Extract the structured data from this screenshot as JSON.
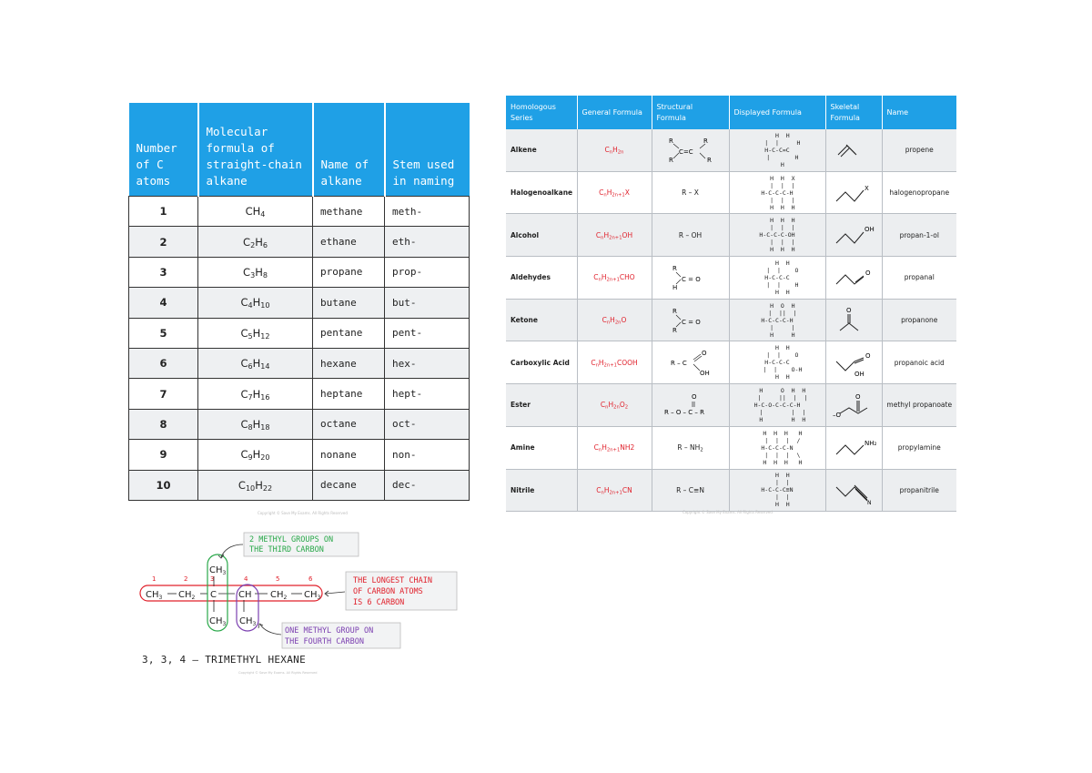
{
  "left_table": {
    "headers": {
      "number": "Number of C atoms",
      "formula": "Molecular formula of straight-chain alkane",
      "name": "Name of alkane",
      "stem": "Stem used in naming"
    },
    "rows": [
      {
        "n": "1",
        "formula": "CH4",
        "name": "methane",
        "stem": "meth-"
      },
      {
        "n": "2",
        "formula": "C2H6",
        "name": "ethane",
        "stem": "eth-"
      },
      {
        "n": "3",
        "formula": "C3H8",
        "name": "propane",
        "stem": "prop-"
      },
      {
        "n": "4",
        "formula": "C4H10",
        "name": "butane",
        "stem": "but-"
      },
      {
        "n": "5",
        "formula": "C5H12",
        "name": "pentane",
        "stem": "pent-"
      },
      {
        "n": "6",
        "formula": "C6H14",
        "name": "hexane",
        "stem": "hex-"
      },
      {
        "n": "7",
        "formula": "C7H16",
        "name": "heptane",
        "stem": "hept-"
      },
      {
        "n": "8",
        "formula": "C8H18",
        "name": "octane",
        "stem": "oct-"
      },
      {
        "n": "9",
        "formula": "C9H20",
        "name": "nonane",
        "stem": "non-"
      },
      {
        "n": "10",
        "formula": "C10H22",
        "name": "decane",
        "stem": "dec-"
      }
    ],
    "copyright": "Copyright © Save My Exams. All Rights Reserved"
  },
  "right_table": {
    "headers": {
      "series": "Homologous Series",
      "general": "General Formula",
      "structural": "Structural Formula",
      "displayed": "Displayed Formula",
      "skeletal": "Skeletal Formula",
      "name": "Name"
    },
    "rows": [
      {
        "series": "Alkene",
        "general": "CnH2n",
        "structural": "R2C=CR2",
        "displayed": "   H  H\n   |  |     H\nH-C-C=C\n   |       H\n   H",
        "name": "propene"
      },
      {
        "series": "Halogenoalkane",
        "general": "CnH2n+1X",
        "structural": "R – X",
        "displayed": "   H  H  X\n   |  |  |\nH-C-C-C-H\n   |  |  |\n   H  H  H",
        "name": "halogenopropane"
      },
      {
        "series": "Alcohol",
        "general": "CnH2n+1OH",
        "structural": "R – OH",
        "displayed": "   H  H  H\n   |  |  |\nH-C-C-C-OH\n   |  |  |\n   H  H  H",
        "name": "propan-1-ol"
      },
      {
        "series": "Aldehydes",
        "general": "CnH2n+1CHO",
        "structural": "RHC=O",
        "displayed": "   H  H\n   |  |    O\nH-C-C-C\n   |  |    H\n   H  H",
        "name": "propanal"
      },
      {
        "series": "Ketone",
        "general": "CnH2nO",
        "structural": "R2C=O",
        "displayed": "   H  O  H\n   |  ||  |\nH-C-C-C-H\n   |     |\n   H     H",
        "name": "propanone"
      },
      {
        "series": "Carboxylic Acid",
        "general": "CnH2n+1COOH",
        "structural": "RCOOH",
        "displayed": "   H  H\n   |  |    O\nH-C-C-C\n   |  |    O-H\n   H  H",
        "name": "propanoic acid"
      },
      {
        "series": "Ester",
        "general": "CnH2nO2",
        "structural": "R – O – C – R",
        "displayed": "   H     O  H  H\n   |     ||  |  |\nH-C-O-C-C-C-H\n   |        |  |\n   H        H  H",
        "name": "methyl propanoate"
      },
      {
        "series": "Amine",
        "general": "CnH2n+1NH2",
        "structural": "R – NH2",
        "displayed": "   H  H  H   H\n   |  |  |  /\nH-C-C-C-N\n   |  |  |  \\\n   H  H  H   H",
        "name": "propylamine"
      },
      {
        "series": "Nitrile",
        "general": "CnH2n+1CN",
        "structural": "R – C≡N",
        "displayed": "   H  H\n   |  |\nH-C-C-C≡N\n   |  |\n   H  H",
        "name": "propanitrile"
      }
    ],
    "copyright": "Copyright © Save My Exams. All Rights Reserved"
  },
  "diagram": {
    "note_methyl_third": "2 METHYL GROUPS ON THE THIRD CARBON",
    "note_longest_chain": "THE LONGEST CHAIN OF CARBON ATOMS IS 6 CARBON",
    "note_methyl_fourth": "ONE METHYL GROUP ON THE FOURTH CARBON",
    "chain_label": "3, 3, 4 – TRIMETHYL HEXANE",
    "numbers": [
      "1",
      "2",
      "3",
      "4",
      "5",
      "6"
    ],
    "copyright": "Copyright © Save My Exams. All Rights Reserved",
    "colors": {
      "green": "#2aa84a",
      "red": "#e0202b",
      "purple": "#7b3fb0"
    }
  }
}
